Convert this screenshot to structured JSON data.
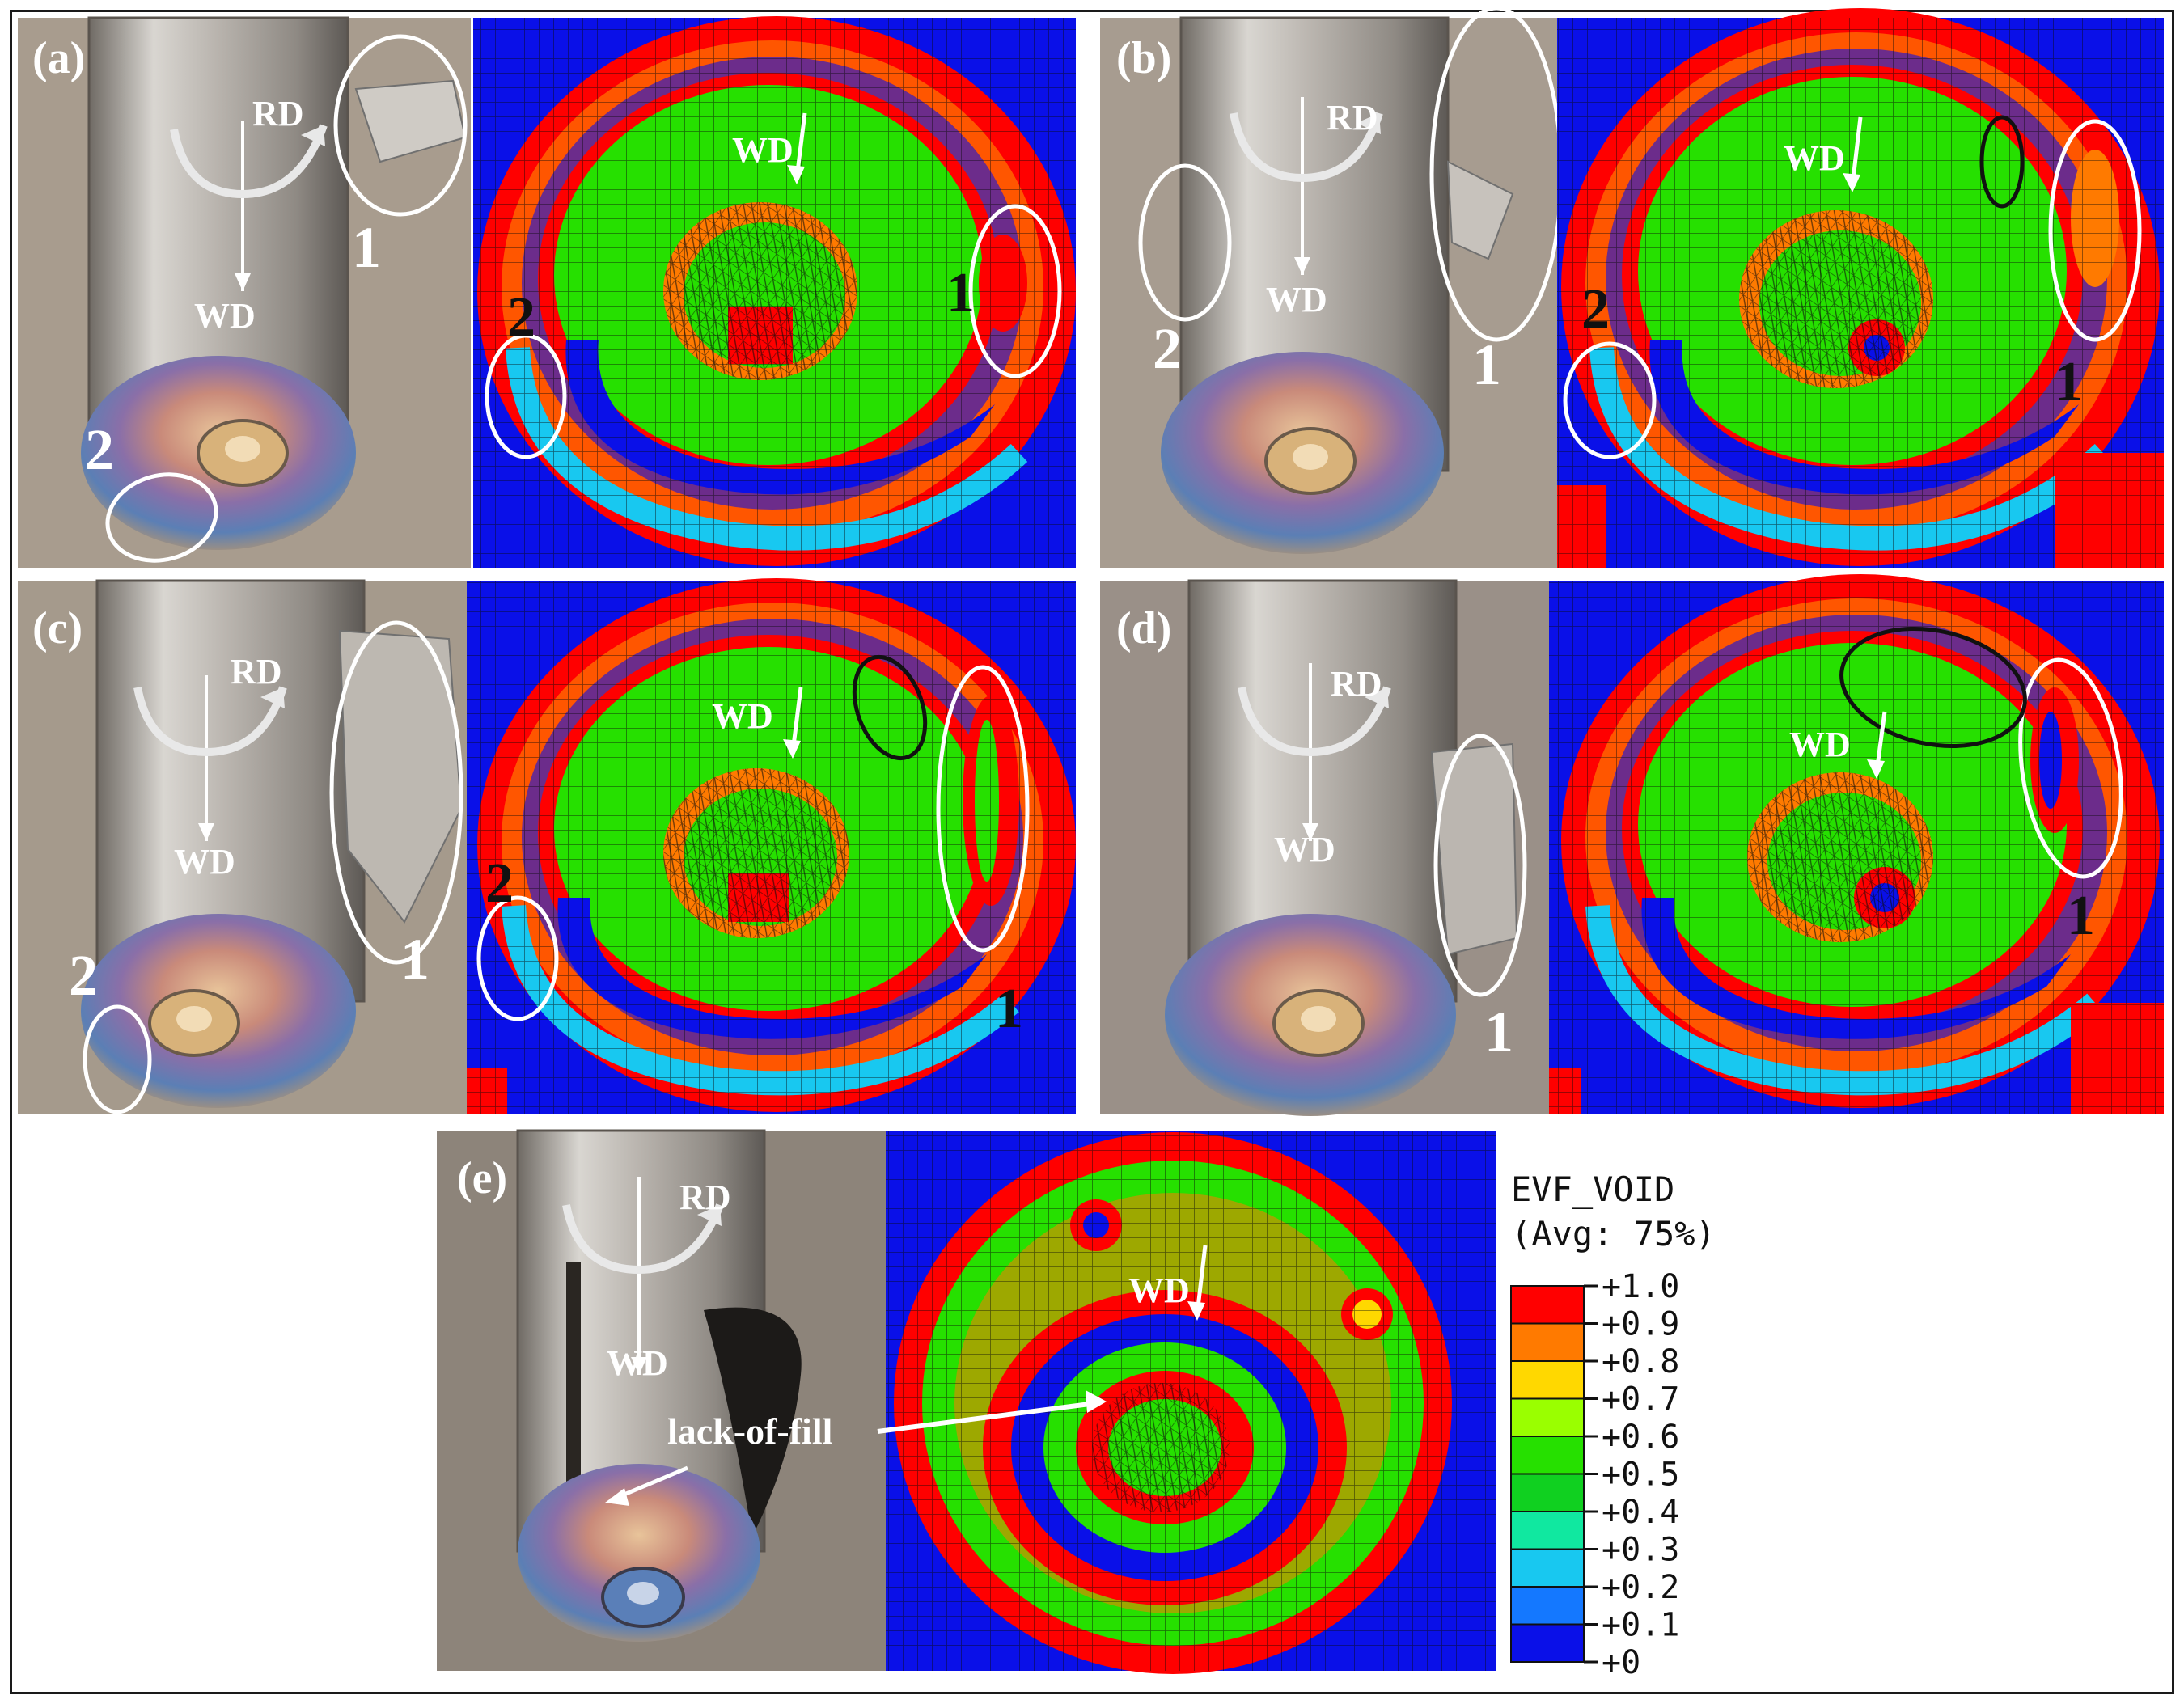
{
  "figure": {
    "panels": [
      {
        "id": "a",
        "tag": "(a)",
        "rd": "RD",
        "wd_photo": "WD",
        "wd_sim": "WD",
        "num1_photo": "1",
        "num2_photo": "2",
        "num1_sim": "1",
        "num2_sim": "2"
      },
      {
        "id": "b",
        "tag": "(b)",
        "rd": "RD",
        "wd_photo": "WD",
        "wd_sim": "WD",
        "num1_photo": "1",
        "num2_photo": "2",
        "num1_sim": "1",
        "num2_sim": "2"
      },
      {
        "id": "c",
        "tag": "(c)",
        "rd": "RD",
        "wd_photo": "WD",
        "wd_sim": "WD",
        "num1_photo": "1",
        "num2_photo": "2",
        "num1_sim": "1",
        "num2_sim": "2"
      },
      {
        "id": "d",
        "tag": "(d)",
        "rd": "RD",
        "wd_photo": "WD",
        "wd_sim": "WD",
        "num1_photo": "1",
        "num1_sim": "1"
      },
      {
        "id": "e",
        "tag": "(e)",
        "rd": "RD",
        "wd_photo": "WD",
        "wd_sim": "WD",
        "annotation": "lack-of-fill"
      }
    ],
    "legend": {
      "title": "EVF_VOID",
      "subtitle": "(Avg: 75%)",
      "ticks": [
        "+1.0",
        "+0.9",
        "+0.8",
        "+0.7",
        "+0.6",
        "+0.5",
        "+0.4",
        "+0.3",
        "+0.2",
        "+0.1",
        "+0"
      ],
      "colors": [
        "#ff0000",
        "#ff7a00",
        "#ffd800",
        "#9aff00",
        "#26e000",
        "#10d020",
        "#10e8a0",
        "#18c8f0",
        "#1478ff",
        "#0a10e8"
      ]
    },
    "colors": {
      "void": "#0a10e8",
      "full": "#ff0000",
      "mid": "#22dd22",
      "photo_base": "#a59a8c",
      "annotation_white": "#ffffff",
      "annotation_black": "#111111"
    }
  }
}
